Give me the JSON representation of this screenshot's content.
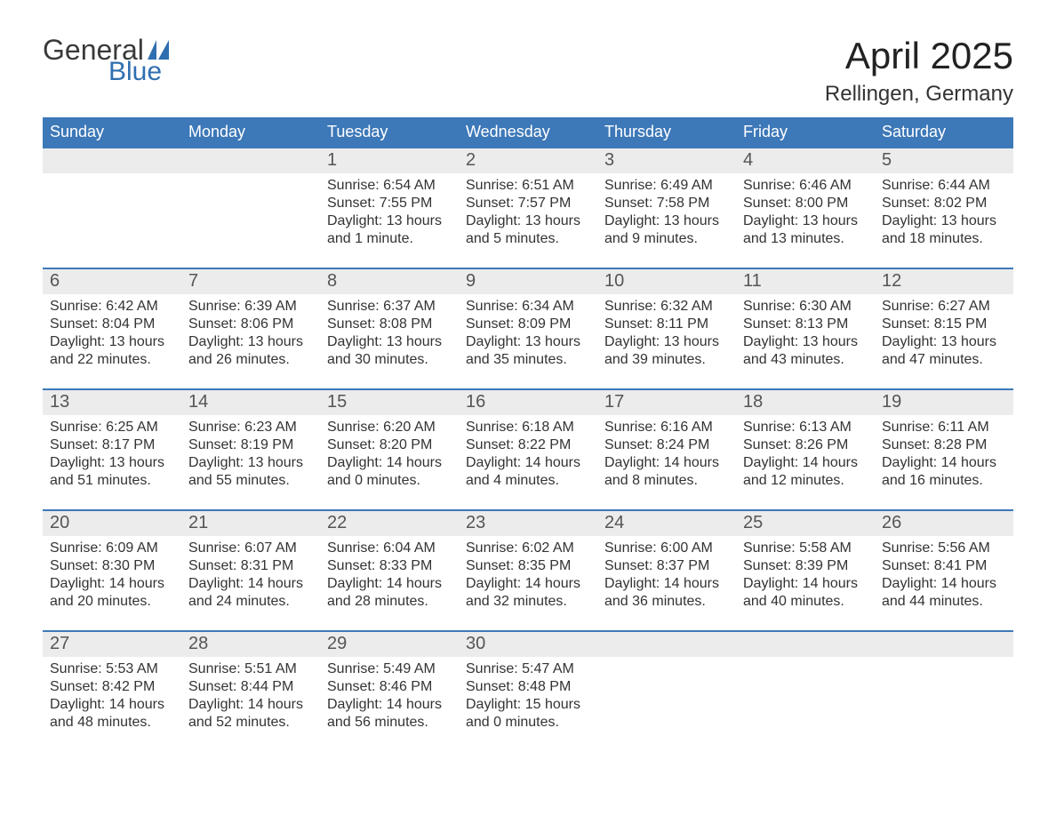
{
  "logo": {
    "top": "General",
    "bottom": "Blue",
    "flag_color": "#2f6fb0"
  },
  "title": "April 2025",
  "subtitle": "Rellingen, Germany",
  "colors": {
    "header_bg": "#3d78b8",
    "header_text": "#ffffff",
    "daynum_bg": "#ececec",
    "week_border": "#3d78b8",
    "body_text": "#333333",
    "logo_gray": "#3a3a3a",
    "logo_blue": "#2f6fb0"
  },
  "weekdays": [
    "Sunday",
    "Monday",
    "Tuesday",
    "Wednesday",
    "Thursday",
    "Friday",
    "Saturday"
  ],
  "weeks": [
    [
      {
        "day": "",
        "sunrise": "",
        "sunset": "",
        "daylight": ""
      },
      {
        "day": "",
        "sunrise": "",
        "sunset": "",
        "daylight": ""
      },
      {
        "day": "1",
        "sunrise": "Sunrise: 6:54 AM",
        "sunset": "Sunset: 7:55 PM",
        "daylight": "Daylight: 13 hours and 1 minute."
      },
      {
        "day": "2",
        "sunrise": "Sunrise: 6:51 AM",
        "sunset": "Sunset: 7:57 PM",
        "daylight": "Daylight: 13 hours and 5 minutes."
      },
      {
        "day": "3",
        "sunrise": "Sunrise: 6:49 AM",
        "sunset": "Sunset: 7:58 PM",
        "daylight": "Daylight: 13 hours and 9 minutes."
      },
      {
        "day": "4",
        "sunrise": "Sunrise: 6:46 AM",
        "sunset": "Sunset: 8:00 PM",
        "daylight": "Daylight: 13 hours and 13 minutes."
      },
      {
        "day": "5",
        "sunrise": "Sunrise: 6:44 AM",
        "sunset": "Sunset: 8:02 PM",
        "daylight": "Daylight: 13 hours and 18 minutes."
      }
    ],
    [
      {
        "day": "6",
        "sunrise": "Sunrise: 6:42 AM",
        "sunset": "Sunset: 8:04 PM",
        "daylight": "Daylight: 13 hours and 22 minutes."
      },
      {
        "day": "7",
        "sunrise": "Sunrise: 6:39 AM",
        "sunset": "Sunset: 8:06 PM",
        "daylight": "Daylight: 13 hours and 26 minutes."
      },
      {
        "day": "8",
        "sunrise": "Sunrise: 6:37 AM",
        "sunset": "Sunset: 8:08 PM",
        "daylight": "Daylight: 13 hours and 30 minutes."
      },
      {
        "day": "9",
        "sunrise": "Sunrise: 6:34 AM",
        "sunset": "Sunset: 8:09 PM",
        "daylight": "Daylight: 13 hours and 35 minutes."
      },
      {
        "day": "10",
        "sunrise": "Sunrise: 6:32 AM",
        "sunset": "Sunset: 8:11 PM",
        "daylight": "Daylight: 13 hours and 39 minutes."
      },
      {
        "day": "11",
        "sunrise": "Sunrise: 6:30 AM",
        "sunset": "Sunset: 8:13 PM",
        "daylight": "Daylight: 13 hours and 43 minutes."
      },
      {
        "day": "12",
        "sunrise": "Sunrise: 6:27 AM",
        "sunset": "Sunset: 8:15 PM",
        "daylight": "Daylight: 13 hours and 47 minutes."
      }
    ],
    [
      {
        "day": "13",
        "sunrise": "Sunrise: 6:25 AM",
        "sunset": "Sunset: 8:17 PM",
        "daylight": "Daylight: 13 hours and 51 minutes."
      },
      {
        "day": "14",
        "sunrise": "Sunrise: 6:23 AM",
        "sunset": "Sunset: 8:19 PM",
        "daylight": "Daylight: 13 hours and 55 minutes."
      },
      {
        "day": "15",
        "sunrise": "Sunrise: 6:20 AM",
        "sunset": "Sunset: 8:20 PM",
        "daylight": "Daylight: 14 hours and 0 minutes."
      },
      {
        "day": "16",
        "sunrise": "Sunrise: 6:18 AM",
        "sunset": "Sunset: 8:22 PM",
        "daylight": "Daylight: 14 hours and 4 minutes."
      },
      {
        "day": "17",
        "sunrise": "Sunrise: 6:16 AM",
        "sunset": "Sunset: 8:24 PM",
        "daylight": "Daylight: 14 hours and 8 minutes."
      },
      {
        "day": "18",
        "sunrise": "Sunrise: 6:13 AM",
        "sunset": "Sunset: 8:26 PM",
        "daylight": "Daylight: 14 hours and 12 minutes."
      },
      {
        "day": "19",
        "sunrise": "Sunrise: 6:11 AM",
        "sunset": "Sunset: 8:28 PM",
        "daylight": "Daylight: 14 hours and 16 minutes."
      }
    ],
    [
      {
        "day": "20",
        "sunrise": "Sunrise: 6:09 AM",
        "sunset": "Sunset: 8:30 PM",
        "daylight": "Daylight: 14 hours and 20 minutes."
      },
      {
        "day": "21",
        "sunrise": "Sunrise: 6:07 AM",
        "sunset": "Sunset: 8:31 PM",
        "daylight": "Daylight: 14 hours and 24 minutes."
      },
      {
        "day": "22",
        "sunrise": "Sunrise: 6:04 AM",
        "sunset": "Sunset: 8:33 PM",
        "daylight": "Daylight: 14 hours and 28 minutes."
      },
      {
        "day": "23",
        "sunrise": "Sunrise: 6:02 AM",
        "sunset": "Sunset: 8:35 PM",
        "daylight": "Daylight: 14 hours and 32 minutes."
      },
      {
        "day": "24",
        "sunrise": "Sunrise: 6:00 AM",
        "sunset": "Sunset: 8:37 PM",
        "daylight": "Daylight: 14 hours and 36 minutes."
      },
      {
        "day": "25",
        "sunrise": "Sunrise: 5:58 AM",
        "sunset": "Sunset: 8:39 PM",
        "daylight": "Daylight: 14 hours and 40 minutes."
      },
      {
        "day": "26",
        "sunrise": "Sunrise: 5:56 AM",
        "sunset": "Sunset: 8:41 PM",
        "daylight": "Daylight: 14 hours and 44 minutes."
      }
    ],
    [
      {
        "day": "27",
        "sunrise": "Sunrise: 5:53 AM",
        "sunset": "Sunset: 8:42 PM",
        "daylight": "Daylight: 14 hours and 48 minutes."
      },
      {
        "day": "28",
        "sunrise": "Sunrise: 5:51 AM",
        "sunset": "Sunset: 8:44 PM",
        "daylight": "Daylight: 14 hours and 52 minutes."
      },
      {
        "day": "29",
        "sunrise": "Sunrise: 5:49 AM",
        "sunset": "Sunset: 8:46 PM",
        "daylight": "Daylight: 14 hours and 56 minutes."
      },
      {
        "day": "30",
        "sunrise": "Sunrise: 5:47 AM",
        "sunset": "Sunset: 8:48 PM",
        "daylight": "Daylight: 15 hours and 0 minutes."
      },
      {
        "day": "",
        "sunrise": "",
        "sunset": "",
        "daylight": ""
      },
      {
        "day": "",
        "sunrise": "",
        "sunset": "",
        "daylight": ""
      },
      {
        "day": "",
        "sunrise": "",
        "sunset": "",
        "daylight": ""
      }
    ]
  ]
}
